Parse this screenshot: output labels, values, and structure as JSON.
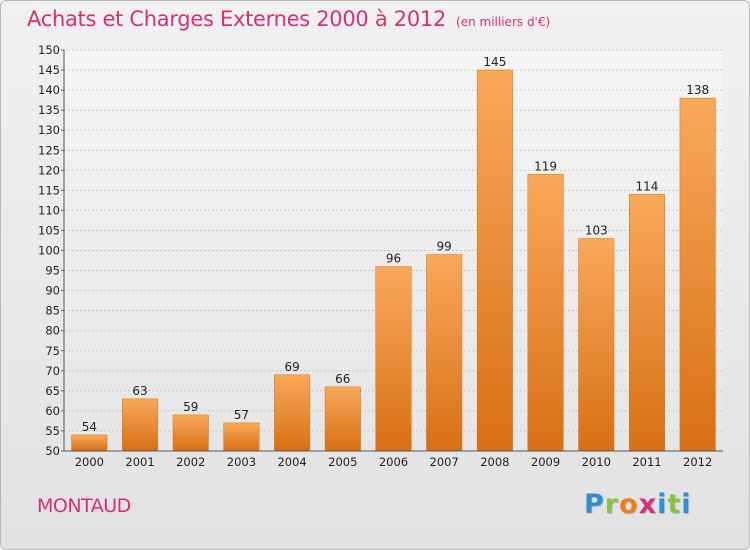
{
  "header": {
    "title": "Achats et Charges Externes 2000 à 2012",
    "unit": "(en milliers d'€)"
  },
  "footer": {
    "place": "MONTAUD",
    "logo_letters": [
      "P",
      "r",
      "o",
      "x",
      "i",
      "t",
      "i"
    ],
    "logo_colors": [
      "#2f8fd6",
      "#8ac43f",
      "#f07d1d",
      "#d62f7a",
      "#2f8fd6",
      "#8ac43f",
      "#2f8fd6"
    ]
  },
  "chart_data": {
    "type": "bar",
    "title": "Achats et Charges Externes 2000 à 2012",
    "subtitle": "(en milliers d'€)",
    "categories": [
      "2000",
      "2001",
      "2002",
      "2003",
      "2004",
      "2005",
      "2006",
      "2007",
      "2008",
      "2009",
      "2010",
      "2011",
      "2012"
    ],
    "values": [
      54,
      63,
      59,
      57,
      69,
      66,
      96,
      99,
      145,
      119,
      103,
      114,
      138
    ],
    "ylim": [
      50,
      150
    ],
    "ytick_step": 5,
    "grid": true,
    "bar_color": "#f08a2e",
    "bar_color_light": "#f8a95a",
    "bar_color_dark": "#d86f14"
  }
}
